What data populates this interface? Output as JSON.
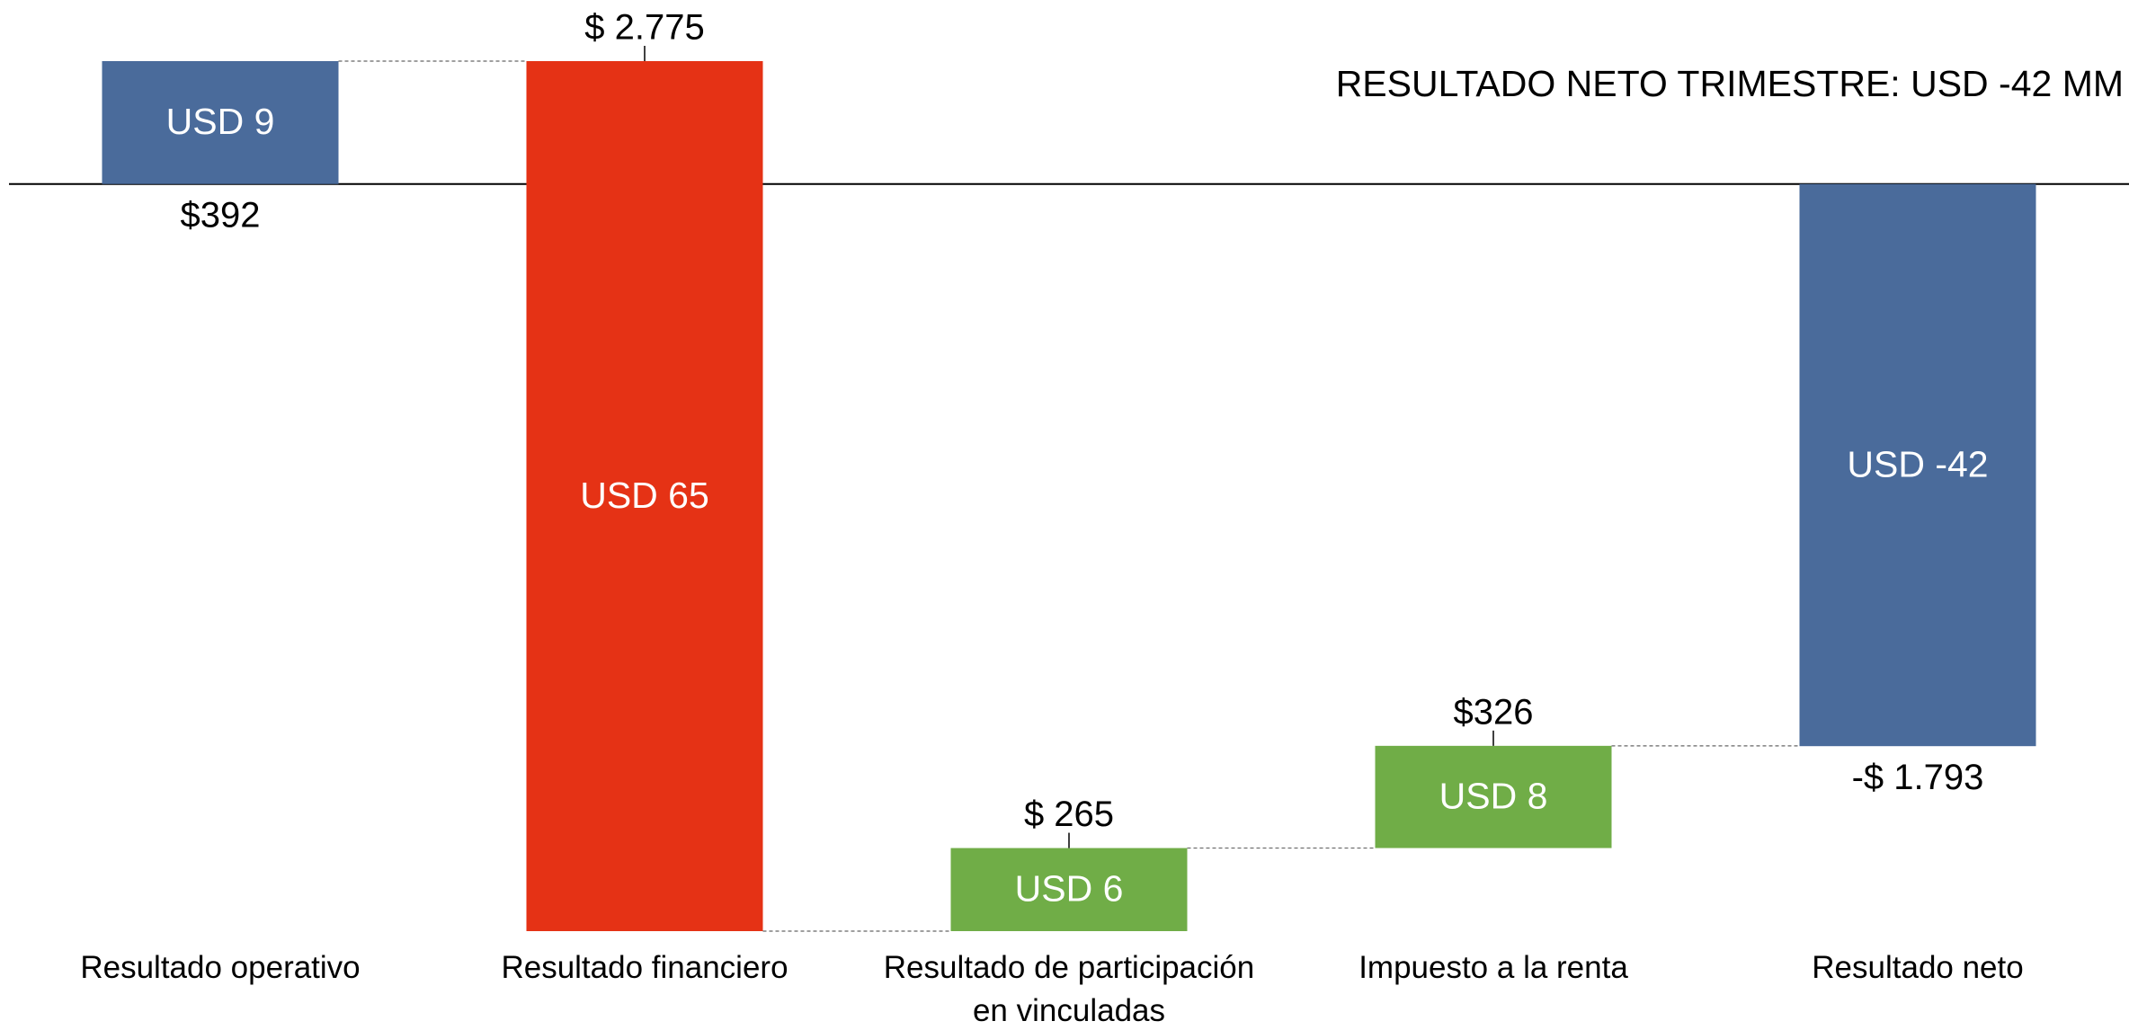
{
  "chart_data": {
    "type": "waterfall",
    "title": "RESULTADO NETO TRIMESTRE: USD -42 MM",
    "categories": [
      "Resultado operativo",
      "Resultado financiero",
      "Resultado de participación\nen vinculadas",
      "Impuesto a la renta",
      "Resultado neto"
    ],
    "values": [
      392,
      -2775,
      265,
      326,
      -1793
    ],
    "value_labels": [
      "$392",
      "$ 2.775",
      "$ 265",
      "$326",
      "-$ 1.793"
    ],
    "inner_labels": [
      "USD 9",
      "USD 65",
      "USD 6",
      "USD 8",
      "USD -42"
    ],
    "is_total": [
      true,
      false,
      false,
      false,
      true
    ],
    "colors": [
      "#4a6b9b",
      "#e53215",
      "#70ad47",
      "#70ad47",
      "#4a6b9b"
    ]
  }
}
